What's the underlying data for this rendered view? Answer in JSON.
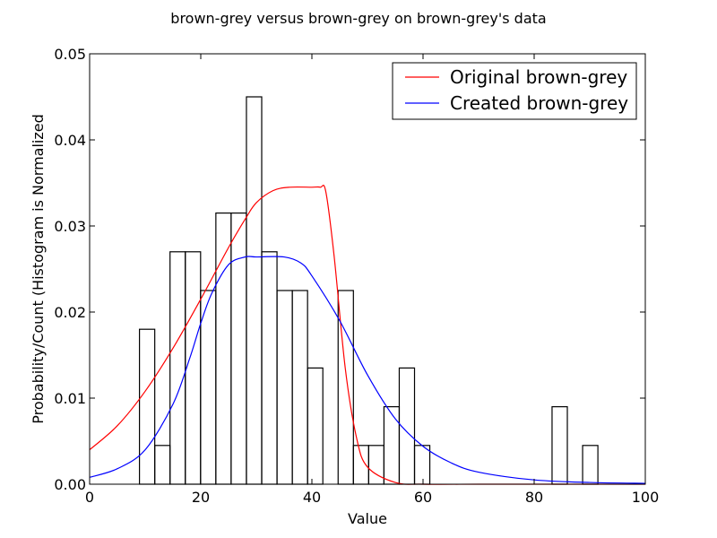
{
  "chart_data": {
    "type": "bar",
    "title": "brown-grey versus brown-grey on brown-grey's data",
    "xlabel": "Value",
    "ylabel": "Probability/Count (Histogram is Normalized",
    "xlim": [
      0,
      100
    ],
    "ylim": [
      0,
      0.05
    ],
    "xticks": [
      0,
      20,
      40,
      60,
      80,
      100
    ],
    "yticks": [
      0.0,
      0.01,
      0.02,
      0.03,
      0.04,
      0.05
    ],
    "ytick_labels": [
      "0.00",
      "0.01",
      "0.02",
      "0.03",
      "0.04",
      "0.05"
    ],
    "grid": false,
    "legend_position": "top-right",
    "histogram": {
      "bin_width": 2.75,
      "bins": [
        {
          "x0": 8.97,
          "height": 0.018
        },
        {
          "x0": 11.72,
          "height": 0.0045
        },
        {
          "x0": 14.47,
          "height": 0.027
        },
        {
          "x0": 17.22,
          "height": 0.027
        },
        {
          "x0": 19.97,
          "height": 0.0225
        },
        {
          "x0": 22.72,
          "height": 0.0315
        },
        {
          "x0": 25.47,
          "height": 0.0315
        },
        {
          "x0": 28.22,
          "height": 0.045
        },
        {
          "x0": 30.97,
          "height": 0.027
        },
        {
          "x0": 33.72,
          "height": 0.0225
        },
        {
          "x0": 36.47,
          "height": 0.0225
        },
        {
          "x0": 39.22,
          "height": 0.0135
        },
        {
          "x0": 41.97,
          "height": 0.0
        },
        {
          "x0": 44.72,
          "height": 0.0225
        },
        {
          "x0": 47.47,
          "height": 0.0045
        },
        {
          "x0": 50.22,
          "height": 0.0045
        },
        {
          "x0": 52.97,
          "height": 0.009
        },
        {
          "x0": 55.72,
          "height": 0.0135
        },
        {
          "x0": 58.47,
          "height": 0.0045
        },
        {
          "x0": 83.22,
          "height": 0.009
        },
        {
          "x0": 88.72,
          "height": 0.0045
        }
      ]
    },
    "series": [
      {
        "name": "Original brown-grey",
        "color": "#ff0000",
        "x": [
          0,
          5,
          10,
          15,
          20,
          25,
          28,
          30,
          33,
          36,
          40,
          41.5,
          42.5,
          44,
          46,
          48,
          50,
          55,
          60,
          70,
          80,
          90,
          100
        ],
        "y": [
          0.004,
          0.0068,
          0.0108,
          0.0158,
          0.0215,
          0.0275,
          0.0308,
          0.0327,
          0.0341,
          0.0345,
          0.0345,
          0.0345,
          0.034,
          0.0265,
          0.0135,
          0.0055,
          0.002,
          0.0002,
          0.0,
          0.0,
          0.0,
          0.0,
          0.0
        ]
      },
      {
        "name": "Created brown-grey",
        "color": "#0000ff",
        "x": [
          0,
          5,
          10,
          15,
          18,
          20,
          22,
          25,
          28,
          30,
          35,
          38,
          40,
          45,
          50,
          55,
          60,
          65,
          70,
          80,
          90,
          100
        ],
        "y": [
          0.0008,
          0.0018,
          0.004,
          0.0093,
          0.0146,
          0.0187,
          0.0222,
          0.0255,
          0.0264,
          0.0264,
          0.0264,
          0.0257,
          0.0242,
          0.019,
          0.0127,
          0.0076,
          0.0044,
          0.0025,
          0.0014,
          0.0005,
          0.0002,
          0.0001
        ]
      }
    ]
  }
}
